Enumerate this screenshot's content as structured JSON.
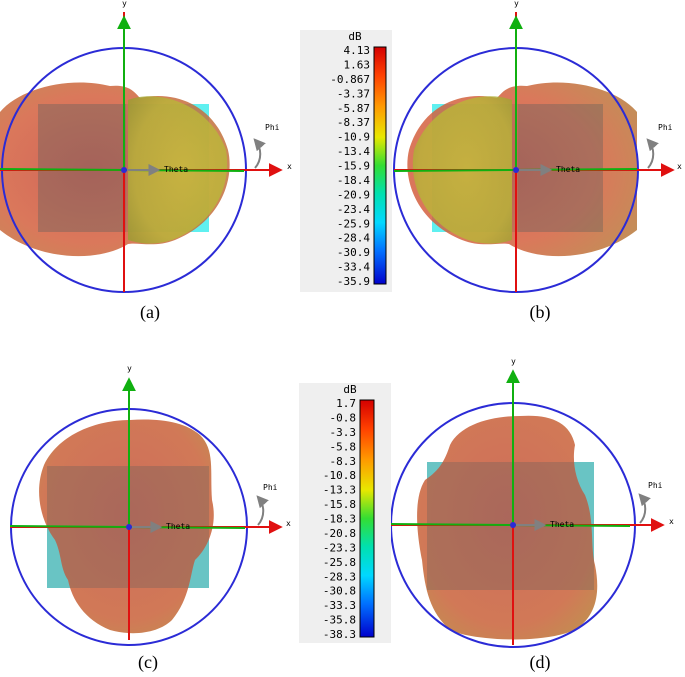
{
  "axis_labels": {
    "x": "x",
    "y": "y",
    "theta": "Theta",
    "phi": "Phi"
  },
  "captions": [
    "(a)",
    "(b)",
    "(c)",
    "(d)"
  ],
  "colorbar_top": {
    "unit": "dB",
    "ticks": [
      "4.13",
      "1.63",
      "-0.867",
      "-3.37",
      "-5.87",
      "-8.37",
      "-10.9",
      "-13.4",
      "-15.9",
      "-18.4",
      "-20.9",
      "-23.4",
      "-25.9",
      "-28.4",
      "-30.9",
      "-33.4",
      "-35.9"
    ]
  },
  "colorbar_bottom": {
    "unit": "dB",
    "ticks": [
      "1.7",
      "-0.8",
      "-3.3",
      "-5.8",
      "-8.3",
      "-10.8",
      "-13.3",
      "-15.8",
      "-18.3",
      "-20.8",
      "-23.3",
      "-25.8",
      "-28.3",
      "-30.8",
      "-33.3",
      "-35.8",
      "-38.3"
    ]
  },
  "colors": {
    "circle": "#2b2bd6",
    "x_axis": "#e01010",
    "y_axis": "#10b010",
    "patch": "#5ff0f0",
    "theta_arrow": "#808080"
  }
}
